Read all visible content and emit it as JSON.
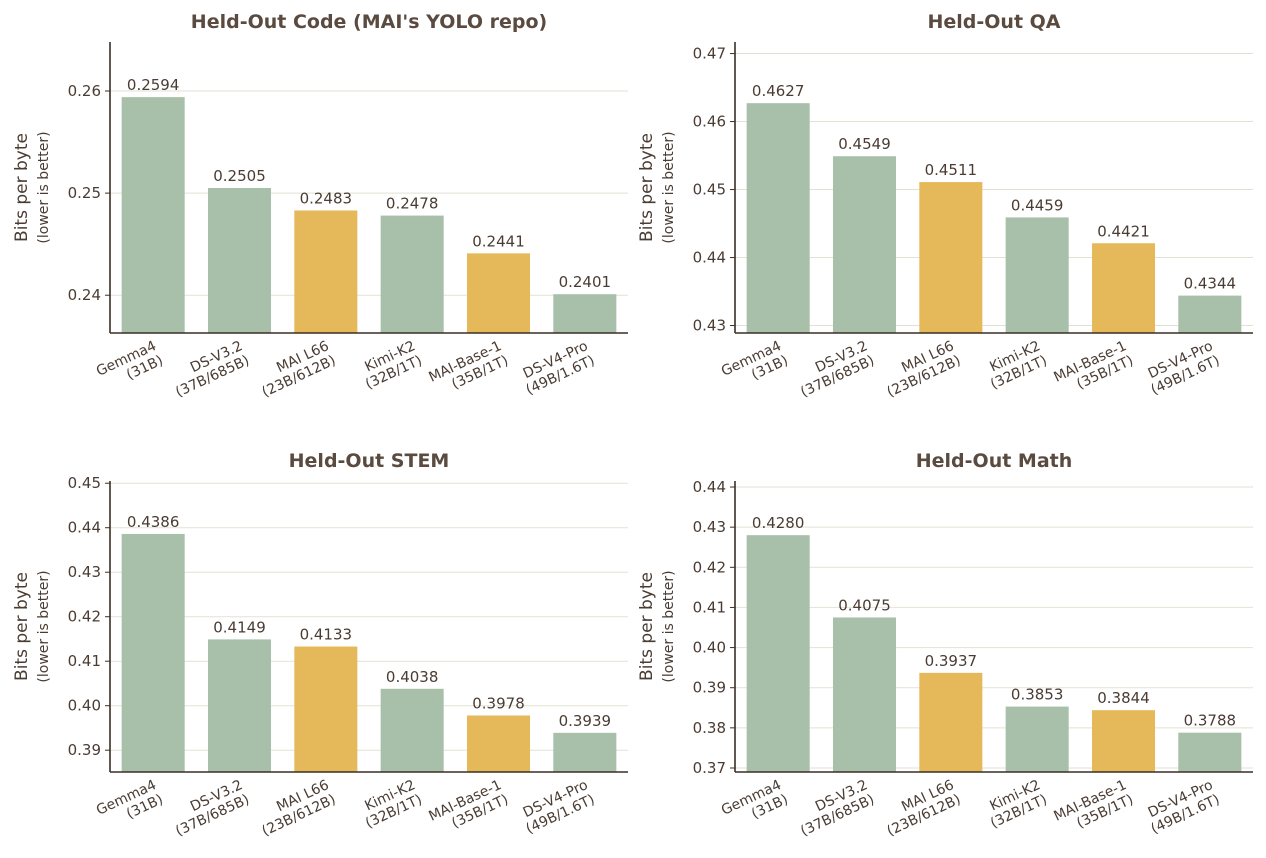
{
  "colors": {
    "baseline": "#a8bfa9",
    "mai": "#e5b85a",
    "text": "#4a3c33",
    "title": "#5a4a3f"
  },
  "chart_data": [
    {
      "type": "bar",
      "title": "Held-Out Code (MAI's YOLO repo)",
      "ylabel": "Bits per byte",
      "ylabel_sub": "(lower is better)",
      "categories": [
        "Gemma4 (31B)",
        "DS-V3.2 (37B/685B)",
        "MAI L66 (23B/612B)",
        "Kimi-K2 (32B/1T)",
        "MAI-Base-1 (35B/1T)",
        "DS-V4-Pro (49B/1.6T)"
      ],
      "category_lines": [
        [
          "Gemma4",
          "(31B)"
        ],
        [
          "DS-V3.2",
          "(37B/685B)"
        ],
        [
          "MAI L66",
          "(23B/612B)"
        ],
        [
          "Kimi-K2",
          "(32B/1T)"
        ],
        [
          "MAI-Base-1",
          "(35B/1T)"
        ],
        [
          "DS-V4-Pro",
          "(49B/1.6T)"
        ]
      ],
      "values": [
        0.2594,
        0.2505,
        0.2483,
        0.2478,
        0.2441,
        0.2401
      ],
      "value_labels": [
        "0.2594",
        "0.2505",
        "0.2483",
        "0.2478",
        "0.2441",
        "0.2401"
      ],
      "highlight": [
        false,
        false,
        true,
        false,
        true,
        false
      ],
      "ylim": [
        0.2363,
        0.2648
      ],
      "yticks": [
        0.24,
        0.25,
        0.26
      ],
      "ytick_labels": [
        "0.24",
        "0.25",
        "0.26"
      ],
      "grid": true
    },
    {
      "type": "bar",
      "title": "Held-Out QA",
      "ylabel": "Bits per byte",
      "ylabel_sub": "(lower is better)",
      "categories": [
        "Gemma4 (31B)",
        "DS-V3.2 (37B/685B)",
        "MAI L66 (23B/612B)",
        "Kimi-K2 (32B/1T)",
        "MAI-Base-1 (35B/1T)",
        "DS-V4-Pro (49B/1.6T)"
      ],
      "category_lines": [
        [
          "Gemma4",
          "(31B)"
        ],
        [
          "DS-V3.2",
          "(37B/685B)"
        ],
        [
          "MAI L66",
          "(23B/612B)"
        ],
        [
          "Kimi-K2",
          "(32B/1T)"
        ],
        [
          "MAI-Base-1",
          "(35B/1T)"
        ],
        [
          "DS-V4-Pro",
          "(49B/1.6T)"
        ]
      ],
      "values": [
        0.4627,
        0.4549,
        0.4511,
        0.4459,
        0.4421,
        0.4344
      ],
      "value_labels": [
        "0.4627",
        "0.4549",
        "0.4511",
        "0.4459",
        "0.4421",
        "0.4344"
      ],
      "highlight": [
        false,
        false,
        true,
        false,
        true,
        false
      ],
      "ylim": [
        0.4289,
        0.4717
      ],
      "yticks": [
        0.43,
        0.44,
        0.45,
        0.46,
        0.47
      ],
      "ytick_labels": [
        "0.43",
        "0.44",
        "0.45",
        "0.46",
        "0.47"
      ],
      "grid": true
    },
    {
      "type": "bar",
      "title": "Held-Out STEM",
      "ylabel": "Bits per byte",
      "ylabel_sub": "(lower is better)",
      "categories": [
        "Gemma4 (31B)",
        "DS-V3.2 (37B/685B)",
        "MAI L66 (23B/612B)",
        "Kimi-K2 (32B/1T)",
        "MAI-Base-1 (35B/1T)",
        "DS-V4-Pro (49B/1.6T)"
      ],
      "category_lines": [
        [
          "Gemma4",
          "(31B)"
        ],
        [
          "DS-V3.2",
          "(37B/685B)"
        ],
        [
          "MAI L66",
          "(23B/612B)"
        ],
        [
          "Kimi-K2",
          "(32B/1T)"
        ],
        [
          "MAI-Base-1",
          "(35B/1T)"
        ],
        [
          "DS-V4-Pro",
          "(49B/1.6T)"
        ]
      ],
      "values": [
        0.4386,
        0.4149,
        0.4133,
        0.4038,
        0.3978,
        0.3939
      ],
      "value_labels": [
        "0.4386",
        "0.4149",
        "0.4133",
        "0.4038",
        "0.3978",
        "0.3939"
      ],
      "highlight": [
        false,
        false,
        true,
        false,
        true,
        false
      ],
      "ylim": [
        0.3851,
        0.4505
      ],
      "yticks": [
        0.39,
        0.4,
        0.41,
        0.42,
        0.43,
        0.44,
        0.45
      ],
      "ytick_labels": [
        "0.39",
        "0.40",
        "0.41",
        "0.42",
        "0.43",
        "0.44",
        "0.45"
      ],
      "grid": true
    },
    {
      "type": "bar",
      "title": "Held-Out Math",
      "ylabel": "Bits per byte",
      "ylabel_sub": "(lower is better)",
      "categories": [
        "Gemma4 (31B)",
        "DS-V3.2 (37B/685B)",
        "MAI L66 (23B/612B)",
        "Kimi-K2 (32B/1T)",
        "MAI-Base-1 (35B/1T)",
        "DS-V4-Pro (49B/1.6T)"
      ],
      "category_lines": [
        [
          "Gemma4",
          "(31B)"
        ],
        [
          "DS-V3.2",
          "(37B/685B)"
        ],
        [
          "MAI L66",
          "(23B/612B)"
        ],
        [
          "Kimi-K2",
          "(32B/1T)"
        ],
        [
          "MAI-Base-1",
          "(35B/1T)"
        ],
        [
          "DS-V4-Pro",
          "(49B/1.6T)"
        ]
      ],
      "values": [
        0.428,
        0.4075,
        0.3937,
        0.3853,
        0.3844,
        0.3788
      ],
      "value_labels": [
        "0.4280",
        "0.4075",
        "0.3937",
        "0.3853",
        "0.3844",
        "0.3788"
      ],
      "highlight": [
        false,
        false,
        true,
        false,
        true,
        false
      ],
      "ylim": [
        0.369,
        0.4415
      ],
      "yticks": [
        0.37,
        0.38,
        0.39,
        0.4,
        0.41,
        0.42,
        0.43,
        0.44
      ],
      "ytick_labels": [
        "0.37",
        "0.38",
        "0.39",
        "0.40",
        "0.41",
        "0.42",
        "0.43",
        "0.44"
      ],
      "grid": true
    }
  ]
}
